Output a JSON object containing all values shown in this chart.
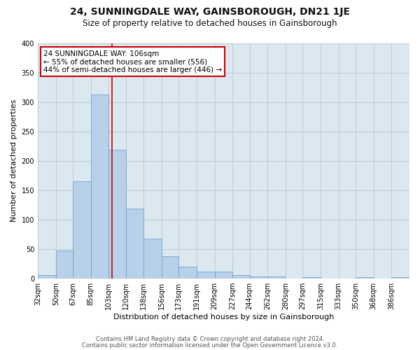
{
  "title": "24, SUNNINGDALE WAY, GAINSBOROUGH, DN21 1JE",
  "subtitle": "Size of property relative to detached houses in Gainsborough",
  "xlabel": "Distribution of detached houses by size in Gainsborough",
  "ylabel": "Number of detached properties",
  "bar_color": "#b8d0e8",
  "bar_edge_color": "#6699cc",
  "bin_labels": [
    "32sqm",
    "50sqm",
    "67sqm",
    "85sqm",
    "103sqm",
    "120sqm",
    "138sqm",
    "156sqm",
    "173sqm",
    "191sqm",
    "209sqm",
    "227sqm",
    "244sqm",
    "262sqm",
    "280sqm",
    "297sqm",
    "315sqm",
    "333sqm",
    "350sqm",
    "368sqm",
    "386sqm"
  ],
  "bar_heights": [
    5,
    47,
    165,
    313,
    218,
    118,
    67,
    38,
    20,
    12,
    11,
    5,
    3,
    3,
    0,
    2,
    0,
    0,
    2,
    0,
    2
  ],
  "bin_edges": [
    32,
    50,
    67,
    85,
    103,
    120,
    138,
    156,
    173,
    191,
    209,
    227,
    244,
    262,
    280,
    297,
    315,
    333,
    350,
    368,
    386,
    404
  ],
  "vline_x": 106,
  "vline_color": "#cc0000",
  "annotation_text": "24 SUNNINGDALE WAY: 106sqm\n← 55% of detached houses are smaller (556)\n44% of semi-detached houses are larger (446) →",
  "annotation_box_color": "#ffffff",
  "annotation_box_edge": "#cc0000",
  "ylim": [
    0,
    400
  ],
  "yticks": [
    0,
    50,
    100,
    150,
    200,
    250,
    300,
    350,
    400
  ],
  "footer1": "Contains HM Land Registry data © Crown copyright and database right 2024.",
  "footer2": "Contains public sector information licensed under the Open Government Licence v3.0.",
  "bg_color": "#ffffff",
  "plot_bg_color": "#dce8f0",
  "grid_color": "#b8ccd8",
  "title_fontsize": 10,
  "subtitle_fontsize": 8.5,
  "axis_label_fontsize": 8,
  "tick_fontsize": 7,
  "annotation_fontsize": 7.5,
  "footer_fontsize": 6
}
